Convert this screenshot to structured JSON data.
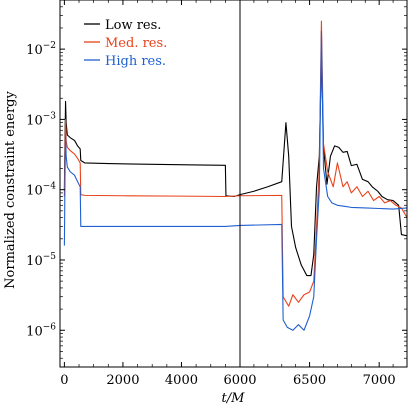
{
  "chart_data": {
    "type": "line",
    "xlabel": "t/M",
    "ylabel": "Normalized constraint energy",
    "xlim": [
      -150,
      7200
    ],
    "ylim": [
      3e-07,
      0.05
    ],
    "yscale": "log",
    "x_axis_segments": [
      {
        "range": [
          -150,
          6000
        ],
        "ticks": [
          0,
          2000,
          4000,
          6000
        ]
      },
      {
        "range": [
          6000,
          7200
        ],
        "ticks": [
          6500,
          7000
        ]
      }
    ],
    "y_ticks": [
      {
        "value": 1e-06,
        "base": "10",
        "exp": "−6"
      },
      {
        "value": 1e-05,
        "base": "10",
        "exp": "−5"
      },
      {
        "value": 0.0001,
        "base": "10",
        "exp": "−4"
      },
      {
        "value": 0.001,
        "base": "10",
        "exp": "−3"
      },
      {
        "value": 0.01,
        "base": "10",
        "exp": "−2"
      }
    ],
    "vertical_line_x": 6000,
    "grid": false,
    "legend_position": "top-left",
    "series": [
      {
        "name": "Low res.",
        "color": "#000000",
        "points": [
          [
            0,
            0.0001
          ],
          [
            20,
            0.0005
          ],
          [
            40,
            0.0018
          ],
          [
            60,
            0.0009
          ],
          [
            100,
            0.0006
          ],
          [
            200,
            0.00055
          ],
          [
            350,
            0.0005
          ],
          [
            450,
            0.00042
          ],
          [
            540,
            0.00038
          ],
          [
            560,
            0.00026
          ],
          [
            700,
            0.00024
          ],
          [
            1500,
            0.000235
          ],
          [
            3000,
            0.00023
          ],
          [
            4500,
            0.000225
          ],
          [
            5500,
            0.000222
          ],
          [
            5520,
            8.2e-05
          ],
          [
            5800,
            8e-05
          ],
          [
            6000,
            8.5e-05
          ],
          [
            6100,
            9.5e-05
          ],
          [
            6200,
            0.00011
          ],
          [
            6300,
            0.00013
          ],
          [
            6330,
            0.0009
          ],
          [
            6350,
            0.0003
          ],
          [
            6370,
            3e-05
          ],
          [
            6400,
            1.5e-05
          ],
          [
            6440,
            8.5e-06
          ],
          [
            6480,
            6e-06
          ],
          [
            6510,
            6e-06
          ],
          [
            6530,
            1.2e-05
          ],
          [
            6550,
            0.00011
          ],
          [
            6570,
            0.0003
          ],
          [
            6585,
            0.009
          ],
          [
            6600,
            0.0004
          ],
          [
            6625,
            0.00012
          ],
          [
            6650,
            0.0003
          ],
          [
            6680,
            0.00042
          ],
          [
            6710,
            0.0004
          ],
          [
            6740,
            0.00034
          ],
          [
            6770,
            0.00035
          ],
          [
            6800,
            0.00022
          ],
          [
            6840,
            0.00023
          ],
          [
            6880,
            0.00014
          ],
          [
            6920,
            0.00013
          ],
          [
            6950,
            0.00011
          ],
          [
            6990,
            9.5e-05
          ],
          [
            7020,
            8e-05
          ],
          [
            7060,
            7.2e-05
          ],
          [
            7100,
            7e-05
          ],
          [
            7140,
            6e-05
          ],
          [
            7160,
            2.3e-05
          ],
          [
            7250,
            2.1e-05
          ],
          [
            7350,
            1.9e-05
          ],
          [
            7450,
            1.8e-05
          ]
        ]
      },
      {
        "name": "Med. res.",
        "color": "#e8431c",
        "points": [
          [
            0,
            8e-05
          ],
          [
            20,
            0.0003
          ],
          [
            40,
            0.001
          ],
          [
            60,
            0.0005
          ],
          [
            100,
            0.0004
          ],
          [
            200,
            0.00036
          ],
          [
            350,
            0.00032
          ],
          [
            450,
            0.00028
          ],
          [
            540,
            0.00024
          ],
          [
            560,
            8.5e-05
          ],
          [
            700,
            8.3e-05
          ],
          [
            2000,
            8.2e-05
          ],
          [
            4000,
            8.1e-05
          ],
          [
            5500,
            8e-05
          ],
          [
            6000,
            8.2e-05
          ],
          [
            6300,
            8.3e-05
          ],
          [
            6310,
            3e-06
          ],
          [
            6350,
            2.2e-06
          ],
          [
            6380,
            3.2e-06
          ],
          [
            6420,
            2.5e-06
          ],
          [
            6460,
            3.2e-06
          ],
          [
            6500,
            3.5e-06
          ],
          [
            6530,
            5e-06
          ],
          [
            6550,
            3e-05
          ],
          [
            6570,
            0.0002
          ],
          [
            6585,
            0.025
          ],
          [
            6600,
            0.00045
          ],
          [
            6630,
            0.00018
          ],
          [
            6670,
            0.00011
          ],
          [
            6700,
            0.00024
          ],
          [
            6740,
            0.00011
          ],
          [
            6770,
            0.00013
          ],
          [
            6800,
            9e-05
          ],
          [
            6840,
            0.00011
          ],
          [
            6880,
            8e-05
          ],
          [
            6920,
            9.5e-05
          ],
          [
            6960,
            7e-05
          ],
          [
            7000,
            8e-05
          ],
          [
            7040,
            6.5e-05
          ],
          [
            7080,
            7e-05
          ],
          [
            7120,
            6e-05
          ],
          [
            7160,
            5.5e-05
          ],
          [
            7200,
            4e-05
          ],
          [
            7250,
            8e-06
          ],
          [
            7300,
            5.5e-06
          ],
          [
            7350,
            5e-06
          ],
          [
            7450,
            4.5e-06
          ]
        ]
      },
      {
        "name": "High res.",
        "color": "#1f5fd0",
        "points": [
          [
            0,
            1.6e-05
          ],
          [
            20,
            0.00015
          ],
          [
            40,
            0.0006
          ],
          [
            60,
            0.0003
          ],
          [
            100,
            0.00021
          ],
          [
            200,
            0.00018
          ],
          [
            350,
            0.00016
          ],
          [
            450,
            0.00013
          ],
          [
            540,
            0.00011
          ],
          [
            560,
            3e-05
          ],
          [
            700,
            3e-05
          ],
          [
            2000,
            3e-05
          ],
          [
            4000,
            3e-05
          ],
          [
            5500,
            3e-05
          ],
          [
            6000,
            3.1e-05
          ],
          [
            6300,
            3.2e-05
          ],
          [
            6310,
            1.4e-06
          ],
          [
            6340,
            1.1e-06
          ],
          [
            6380,
            1e-06
          ],
          [
            6420,
            1.2e-06
          ],
          [
            6460,
            1e-06
          ],
          [
            6500,
            1.6e-06
          ],
          [
            6530,
            3e-06
          ],
          [
            6550,
            2e-05
          ],
          [
            6570,
            0.0001
          ],
          [
            6585,
            0.018
          ],
          [
            6600,
            0.0002
          ],
          [
            6630,
            8e-05
          ],
          [
            6660,
            6.5e-05
          ],
          [
            6700,
            6e-05
          ],
          [
            6750,
            5.8e-05
          ],
          [
            6800,
            5.6e-05
          ],
          [
            6900,
            5.5e-05
          ],
          [
            7000,
            5.4e-05
          ],
          [
            7100,
            5.3e-05
          ],
          [
            7200,
            5.5e-05
          ],
          [
            7300,
            5.5e-05
          ],
          [
            7450,
            5.5e-05
          ]
        ]
      }
    ]
  }
}
